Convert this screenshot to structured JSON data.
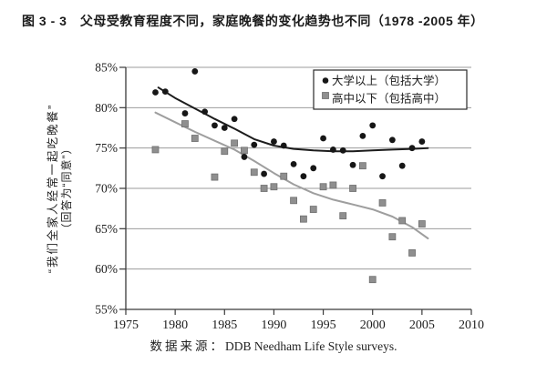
{
  "figure_label": "图 3 - 3",
  "title": "图 3 - 3　父母受教育程度不同，家庭晚餐的变化趋势也不同（1978 -2005 年）",
  "source": {
    "label": "数据来源：",
    "text": "DDB Needham Life Style surveys."
  },
  "colors": {
    "college_series": "#161616",
    "highschool_series": "#8f8f8f",
    "college_trend": "#1c1c1c",
    "highschool_trend": "#9e9e9e",
    "gridline": "#9b9b9b",
    "axis": "#3a3a3a",
    "legend_border": "#2a2a2a",
    "background": "#ffffff"
  },
  "chart_data": {
    "type": "scatter",
    "title": "",
    "xlabel": "",
    "ylabel_line1": "“我们全家人经常一起吃晚餐”",
    "ylabel_line2": "（回答为“同意”）",
    "xlim": [
      1975,
      2010
    ],
    "ylim": [
      55,
      85
    ],
    "x_ticks": [
      1975,
      1980,
      1985,
      1990,
      1995,
      2000,
      2005,
      2010
    ],
    "y_ticks": [
      55,
      60,
      65,
      70,
      75,
      80,
      85
    ],
    "y_tick_suffix": "%",
    "grid": "horizontal",
    "legend_position": "top-right",
    "series": [
      {
        "name": "大学以上（包括大学）",
        "marker": "circle",
        "color": "#161616",
        "points": [
          [
            1978,
            81.9
          ],
          [
            1979,
            82.0
          ],
          [
            1981,
            79.3
          ],
          [
            1982,
            84.5
          ],
          [
            1983,
            79.5
          ],
          [
            1984,
            77.8
          ],
          [
            1985,
            77.5
          ],
          [
            1986,
            78.6
          ],
          [
            1987,
            73.9
          ],
          [
            1988,
            75.4
          ],
          [
            1989,
            71.8
          ],
          [
            1990,
            75.8
          ],
          [
            1991,
            75.3
          ],
          [
            1992,
            73.0
          ],
          [
            1993,
            71.5
          ],
          [
            1994,
            72.5
          ],
          [
            1995,
            76.2
          ],
          [
            1996,
            74.8
          ],
          [
            1997,
            74.7
          ],
          [
            1998,
            72.9
          ],
          [
            1999,
            76.5
          ],
          [
            2000,
            77.8
          ],
          [
            2001,
            71.5
          ],
          [
            2002,
            76.0
          ],
          [
            2003,
            72.8
          ],
          [
            2004,
            75.0
          ],
          [
            2005,
            75.8
          ]
        ]
      },
      {
        "name": "高中以下（包括高中）",
        "marker": "square",
        "color": "#8f8f8f",
        "points": [
          [
            1978,
            74.8
          ],
          [
            1981,
            78.0
          ],
          [
            1982,
            76.2
          ],
          [
            1984,
            71.4
          ],
          [
            1985,
            74.6
          ],
          [
            1986,
            75.6
          ],
          [
            1987,
            74.7
          ],
          [
            1988,
            72.0
          ],
          [
            1989,
            70.0
          ],
          [
            1990,
            70.2
          ],
          [
            1991,
            71.5
          ],
          [
            1992,
            68.5
          ],
          [
            1993,
            66.2
          ],
          [
            1994,
            67.4
          ],
          [
            1995,
            70.2
          ],
          [
            1996,
            70.4
          ],
          [
            1997,
            66.6
          ],
          [
            1998,
            70.0
          ],
          [
            1999,
            72.8
          ],
          [
            2000,
            58.7
          ],
          [
            2001,
            68.2
          ],
          [
            2002,
            64.0
          ],
          [
            2003,
            66.0
          ],
          [
            2004,
            62.0
          ],
          [
            2005,
            65.6
          ]
        ]
      }
    ],
    "trend_lines": [
      {
        "series": "大学以上（包括大学）",
        "color": "#1c1c1c",
        "points": [
          [
            1978.3,
            82.5
          ],
          [
            1980,
            81.2
          ],
          [
            1982,
            79.9
          ],
          [
            1984,
            78.6
          ],
          [
            1986,
            77.4
          ],
          [
            1988,
            76.1
          ],
          [
            1990,
            75.3
          ],
          [
            1992,
            74.9
          ],
          [
            1994,
            74.7
          ],
          [
            1996,
            74.6
          ],
          [
            1998,
            74.6
          ],
          [
            2000,
            74.7
          ],
          [
            2002,
            74.8
          ],
          [
            2004,
            74.9
          ],
          [
            2005.6,
            75.0
          ]
        ]
      },
      {
        "series": "高中以下（包括高中）",
        "color": "#9e9e9e",
        "points": [
          [
            1978,
            79.4
          ],
          [
            1980,
            78.2
          ],
          [
            1982,
            77.0
          ],
          [
            1984,
            75.9
          ],
          [
            1986,
            74.8
          ],
          [
            1988,
            73.4
          ],
          [
            1990,
            71.9
          ],
          [
            1992,
            70.5
          ],
          [
            1994,
            69.4
          ],
          [
            1996,
            68.6
          ],
          [
            1998,
            68.0
          ],
          [
            2000,
            67.4
          ],
          [
            2002,
            66.5
          ],
          [
            2004,
            65.2
          ],
          [
            2005.6,
            63.8
          ]
        ]
      }
    ]
  }
}
